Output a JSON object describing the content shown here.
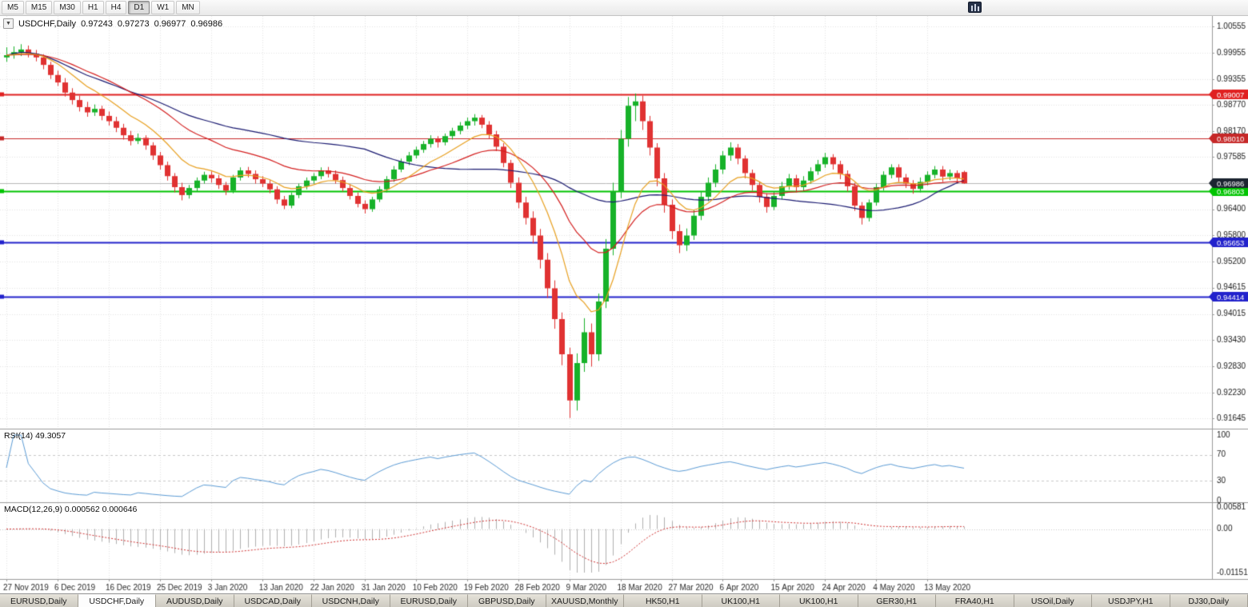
{
  "toolbar": {
    "timeframes": [
      {
        "label": "M5",
        "active": false
      },
      {
        "label": "M15",
        "active": false
      },
      {
        "label": "M30",
        "active": false
      },
      {
        "label": "H1",
        "active": false
      },
      {
        "label": "H4",
        "active": false
      },
      {
        "label": "D1",
        "active": true
      },
      {
        "label": "W1",
        "active": false
      },
      {
        "label": "MN",
        "active": false
      }
    ]
  },
  "chart": {
    "symbol_timeframe": "USDCHF,Daily",
    "open": "0.97243",
    "high": "0.97273",
    "low": "0.96977",
    "close": "0.96986"
  },
  "chart_data": {
    "type": "candlestick",
    "symbol": "USDCHF",
    "timeframe": "Daily",
    "title": "USDCHF,Daily 0.97243 0.97273 0.96977 0.96986",
    "y_range": [
      0.91645,
      1.00555
    ],
    "y_ticks": [
      "1.00555",
      "0.99955",
      "0.99355",
      "0.98770",
      "0.98170",
      "0.97585",
      "0.96400",
      "0.95800",
      "0.95200",
      "0.94615",
      "0.94015",
      "0.93430",
      "0.92830",
      "0.92230",
      "0.91645"
    ],
    "x_labels": [
      "27 Nov 2019",
      "6 Dec 2019",
      "16 Dec 2019",
      "25 Dec 2019",
      "3 Jan 2020",
      "13 Jan 2020",
      "22 Jan 2020",
      "31 Jan 2020",
      "10 Feb 2020",
      "19 Feb 2020",
      "28 Feb 2020",
      "9 Mar 2020",
      "18 Mar 2020",
      "27 Mar 2020",
      "6 Apr 2020",
      "15 Apr 2020",
      "24 Apr 2020",
      "4 May 2020",
      "13 May 2020"
    ],
    "label_every": 7,
    "colors": {
      "up": "#17b229",
      "down": "#e03232",
      "grid": "#e4e4e4"
    },
    "candles": [
      [
        0.9985,
        1.0008,
        0.9975,
        0.999
      ],
      [
        0.999,
        1.001,
        0.9982,
        0.9997
      ],
      [
        0.9997,
        1.0015,
        0.9988,
        1.0003
      ],
      [
        1.0003,
        1.0012,
        0.9985,
        0.9993
      ],
      [
        0.9993,
        1.0002,
        0.9976,
        0.9985
      ],
      [
        0.9985,
        0.9992,
        0.9958,
        0.9968
      ],
      [
        0.9968,
        0.9975,
        0.9936,
        0.9945
      ],
      [
        0.9945,
        0.9955,
        0.992,
        0.9928
      ],
      [
        0.9928,
        0.9938,
        0.9896,
        0.9905
      ],
      [
        0.9905,
        0.9915,
        0.9878,
        0.9888
      ],
      [
        0.9888,
        0.9898,
        0.9862,
        0.9872
      ],
      [
        0.9872,
        0.9884,
        0.985,
        0.986
      ],
      [
        0.986,
        0.9878,
        0.9852,
        0.9868
      ],
      [
        0.9868,
        0.9875,
        0.9842,
        0.9852
      ],
      [
        0.9852,
        0.9862,
        0.983,
        0.984
      ],
      [
        0.984,
        0.985,
        0.9815,
        0.9825
      ],
      [
        0.9825,
        0.9834,
        0.9798,
        0.9808
      ],
      [
        0.9808,
        0.9818,
        0.9785,
        0.9795
      ],
      [
        0.9795,
        0.9812,
        0.9788,
        0.9802
      ],
      [
        0.9802,
        0.9808,
        0.9775,
        0.9785
      ],
      [
        0.9785,
        0.9792,
        0.9752,
        0.9762
      ],
      [
        0.9762,
        0.977,
        0.973,
        0.974
      ],
      [
        0.974,
        0.9748,
        0.9705,
        0.9715
      ],
      [
        0.9715,
        0.9722,
        0.9678,
        0.969
      ],
      [
        0.969,
        0.97,
        0.966,
        0.9672
      ],
      [
        0.9672,
        0.9695,
        0.9664,
        0.9688
      ],
      [
        0.9688,
        0.9712,
        0.968,
        0.9705
      ],
      [
        0.9705,
        0.9725,
        0.9698,
        0.9718
      ],
      [
        0.9718,
        0.9726,
        0.97,
        0.971
      ],
      [
        0.971,
        0.9718,
        0.9686,
        0.9695
      ],
      [
        0.9695,
        0.9702,
        0.9672,
        0.9682
      ],
      [
        0.9682,
        0.9718,
        0.9676,
        0.9712
      ],
      [
        0.9712,
        0.9735,
        0.9705,
        0.9728
      ],
      [
        0.9728,
        0.9736,
        0.9712,
        0.972
      ],
      [
        0.972,
        0.9728,
        0.9698,
        0.9708
      ],
      [
        0.9708,
        0.9715,
        0.969,
        0.9698
      ],
      [
        0.9698,
        0.9706,
        0.9676,
        0.9685
      ],
      [
        0.9685,
        0.9692,
        0.9652,
        0.9662
      ],
      [
        0.9662,
        0.967,
        0.964,
        0.9648
      ],
      [
        0.9648,
        0.9678,
        0.9642,
        0.9672
      ],
      [
        0.9672,
        0.9698,
        0.9665,
        0.9692
      ],
      [
        0.9692,
        0.9712,
        0.9685,
        0.9705
      ],
      [
        0.9705,
        0.9722,
        0.9698,
        0.9715
      ],
      [
        0.9715,
        0.9735,
        0.9708,
        0.9728
      ],
      [
        0.9728,
        0.9736,
        0.9712,
        0.972
      ],
      [
        0.972,
        0.9728,
        0.9698,
        0.9706
      ],
      [
        0.9706,
        0.9714,
        0.968,
        0.9688
      ],
      [
        0.9688,
        0.9696,
        0.9662,
        0.967
      ],
      [
        0.967,
        0.9678,
        0.9644,
        0.9652
      ],
      [
        0.9652,
        0.966,
        0.963,
        0.964
      ],
      [
        0.964,
        0.9668,
        0.9634,
        0.9662
      ],
      [
        0.9662,
        0.9692,
        0.9656,
        0.9685
      ],
      [
        0.9685,
        0.9715,
        0.9678,
        0.9708
      ],
      [
        0.9708,
        0.9738,
        0.9702,
        0.973
      ],
      [
        0.973,
        0.9755,
        0.9724,
        0.9748
      ],
      [
        0.9748,
        0.977,
        0.974,
        0.9762
      ],
      [
        0.9762,
        0.9782,
        0.9755,
        0.9775
      ],
      [
        0.9775,
        0.9795,
        0.9768,
        0.9788
      ],
      [
        0.9788,
        0.9808,
        0.978,
        0.98
      ],
      [
        0.98,
        0.9806,
        0.978,
        0.9792
      ],
      [
        0.9792,
        0.9812,
        0.9785,
        0.9806
      ],
      [
        0.9806,
        0.9825,
        0.9798,
        0.9818
      ],
      [
        0.9818,
        0.9838,
        0.981,
        0.983
      ],
      [
        0.983,
        0.9848,
        0.9822,
        0.984
      ],
      [
        0.984,
        0.9856,
        0.983,
        0.9848
      ],
      [
        0.9848,
        0.9854,
        0.9824,
        0.9832
      ],
      [
        0.9832,
        0.984,
        0.98,
        0.981
      ],
      [
        0.981,
        0.9818,
        0.9772,
        0.9782
      ],
      [
        0.9782,
        0.979,
        0.9735,
        0.9745
      ],
      [
        0.9745,
        0.9752,
        0.9688,
        0.97
      ],
      [
        0.97,
        0.9712,
        0.9642,
        0.9655
      ],
      [
        0.9655,
        0.9668,
        0.9605,
        0.962
      ],
      [
        0.962,
        0.9635,
        0.9562,
        0.958
      ],
      [
        0.958,
        0.9595,
        0.9505,
        0.9525
      ],
      [
        0.9525,
        0.954,
        0.9438,
        0.946
      ],
      [
        0.946,
        0.9478,
        0.9368,
        0.939
      ],
      [
        0.939,
        0.9405,
        0.9285,
        0.931
      ],
      [
        0.931,
        0.9325,
        0.9165,
        0.9205
      ],
      [
        0.9205,
        0.9312,
        0.9182,
        0.929
      ],
      [
        0.929,
        0.9392,
        0.927,
        0.936
      ],
      [
        0.936,
        0.938,
        0.9282,
        0.931
      ],
      [
        0.931,
        0.9448,
        0.9295,
        0.943
      ],
      [
        0.943,
        0.9572,
        0.9415,
        0.955
      ],
      [
        0.955,
        0.97,
        0.9535,
        0.968
      ],
      [
        0.968,
        0.982,
        0.9665,
        0.98
      ],
      [
        0.98,
        0.9895,
        0.9782,
        0.9875
      ],
      [
        0.9875,
        0.9903,
        0.984,
        0.9885
      ],
      [
        0.9885,
        0.9898,
        0.982,
        0.984
      ],
      [
        0.984,
        0.9852,
        0.9762,
        0.978
      ],
      [
        0.978,
        0.979,
        0.9692,
        0.971
      ],
      [
        0.971,
        0.9722,
        0.9632,
        0.965
      ],
      [
        0.965,
        0.9662,
        0.9572,
        0.959
      ],
      [
        0.959,
        0.9605,
        0.954,
        0.9558
      ],
      [
        0.9558,
        0.9596,
        0.9545,
        0.958
      ],
      [
        0.958,
        0.9638,
        0.957,
        0.9625
      ],
      [
        0.9625,
        0.968,
        0.9615,
        0.9668
      ],
      [
        0.9668,
        0.9712,
        0.9658,
        0.97
      ],
      [
        0.97,
        0.9742,
        0.969,
        0.973
      ],
      [
        0.973,
        0.9772,
        0.972,
        0.9762
      ],
      [
        0.9762,
        0.9792,
        0.975,
        0.978
      ],
      [
        0.978,
        0.9788,
        0.9742,
        0.9755
      ],
      [
        0.9755,
        0.9762,
        0.971,
        0.9722
      ],
      [
        0.9722,
        0.973,
        0.9682,
        0.9695
      ],
      [
        0.9695,
        0.9702,
        0.9655,
        0.9668
      ],
      [
        0.9668,
        0.9676,
        0.9632,
        0.9645
      ],
      [
        0.9645,
        0.968,
        0.9638,
        0.967
      ],
      [
        0.967,
        0.9702,
        0.9662,
        0.9692
      ],
      [
        0.9692,
        0.972,
        0.9684,
        0.971
      ],
      [
        0.971,
        0.9718,
        0.9678,
        0.969
      ],
      [
        0.969,
        0.9715,
        0.9682,
        0.9705
      ],
      [
        0.9705,
        0.9735,
        0.9698,
        0.9726
      ],
      [
        0.9726,
        0.9752,
        0.9718,
        0.9742
      ],
      [
        0.9742,
        0.9768,
        0.9734,
        0.9758
      ],
      [
        0.9758,
        0.9765,
        0.973,
        0.9742
      ],
      [
        0.9742,
        0.975,
        0.9708,
        0.972
      ],
      [
        0.972,
        0.9728,
        0.968,
        0.9692
      ],
      [
        0.9692,
        0.97,
        0.9636,
        0.9648
      ],
      [
        0.9648,
        0.9656,
        0.9605,
        0.962
      ],
      [
        0.962,
        0.9662,
        0.9612,
        0.9655
      ],
      [
        0.9655,
        0.9698,
        0.9648,
        0.969
      ],
      [
        0.969,
        0.9726,
        0.9682,
        0.9718
      ],
      [
        0.9718,
        0.9742,
        0.971,
        0.9735
      ],
      [
        0.9735,
        0.9742,
        0.9702,
        0.9712
      ],
      [
        0.9712,
        0.972,
        0.9688,
        0.9698
      ],
      [
        0.9698,
        0.9706,
        0.9675,
        0.9686
      ],
      [
        0.9686,
        0.9712,
        0.9678,
        0.9702
      ],
      [
        0.9702,
        0.9726,
        0.9694,
        0.9718
      ],
      [
        0.9718,
        0.9738,
        0.971,
        0.973
      ],
      [
        0.973,
        0.9738,
        0.9702,
        0.9714
      ],
      [
        0.9714,
        0.973,
        0.9706,
        0.9722
      ],
      [
        0.9722,
        0.9728,
        0.9698,
        0.971
      ],
      [
        0.97243,
        0.97273,
        0.96977,
        0.96986
      ]
    ],
    "levels": [
      {
        "value": 0.99007,
        "label": "0.99007",
        "color": "#e02020",
        "width": 2
      },
      {
        "value": 0.9801,
        "label": "0.98010",
        "color": "#c62828",
        "width": 1
      },
      {
        "value": 0.96803,
        "label": "0.96803",
        "color": "#00c400",
        "width": 2
      },
      {
        "value": 0.95653,
        "label": "0.95653",
        "color": "#2222cc",
        "width": 2
      },
      {
        "value": 0.94414,
        "label": "0.94414",
        "color": "#2222cc",
        "width": 2
      }
    ],
    "current_price": {
      "value": 0.96986,
      "label": "0.96986",
      "badge": "#1b2430",
      "line_color": "#b8b8b8"
    },
    "moving_averages": [
      {
        "type": "sma",
        "period": 50,
        "color": "#191970"
      },
      {
        "type": "ema",
        "period": 25,
        "color": "#d41f1f"
      },
      {
        "type": "ema",
        "period": 10,
        "color": "#e8a020"
      }
    ],
    "rsi": {
      "label": "RSI(14) 49.3057",
      "period": 14,
      "value": 49.3057,
      "color": "#5b9bd5",
      "levels": [
        70,
        30
      ],
      "ticks": [
        [
          "100",
          100
        ],
        [
          "70",
          70
        ],
        [
          "30",
          30
        ],
        [
          "0",
          0
        ]
      ]
    },
    "macd": {
      "label": "MACD(12,26,9) 0.000562 0.000646",
      "fast": 12,
      "slow": 26,
      "signal": 9,
      "main_value": 0.000562,
      "signal_value": 0.000646,
      "range": [
        -0.01151,
        0.00581
      ],
      "hist_color": "#b0b0b0",
      "signal_color": "#d03030",
      "ticks": [
        [
          "0.00581",
          0.00581
        ],
        [
          "0.00",
          0
        ],
        [
          "-0.01151",
          -0.01151
        ]
      ]
    }
  },
  "tabs": [
    {
      "label": "EURUSD,Daily",
      "active": false
    },
    {
      "label": "USDCHF,Daily",
      "active": true
    },
    {
      "label": "AUDUSD,Daily",
      "active": false
    },
    {
      "label": "USDCAD,Daily",
      "active": false
    },
    {
      "label": "USDCNH,Daily",
      "active": false
    },
    {
      "label": "EURUSD,Daily",
      "active": false
    },
    {
      "label": "GBPUSD,Daily",
      "active": false
    },
    {
      "label": "XAUUSD,Monthly",
      "active": false
    },
    {
      "label": "HK50,H1",
      "active": false
    },
    {
      "label": "UK100,H1",
      "active": false
    },
    {
      "label": "UK100,H1",
      "active": false
    },
    {
      "label": "GER30,H1",
      "active": false
    },
    {
      "label": "FRA40,H1",
      "active": false
    },
    {
      "label": "USOil,Daily",
      "active": false
    },
    {
      "label": "USDJPY,H1",
      "active": false
    },
    {
      "label": "DJ30,Daily",
      "active": false
    }
  ]
}
